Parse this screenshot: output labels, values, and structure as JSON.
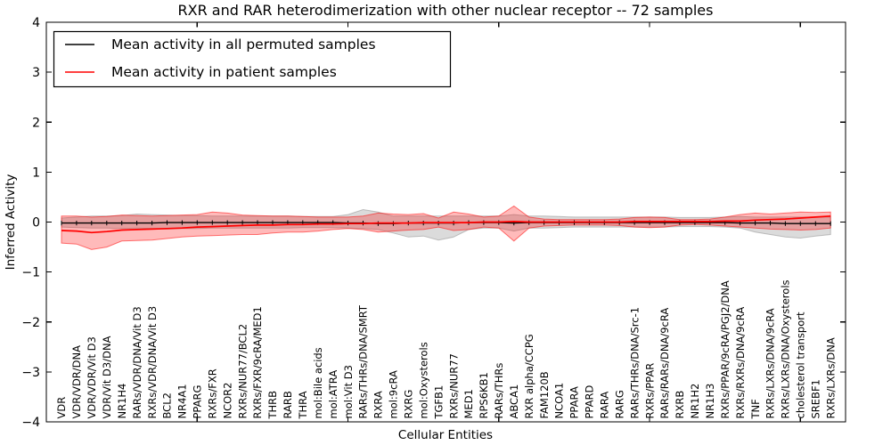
{
  "chart_data": {
    "type": "line",
    "title": "RXR and RAR heterodimerization with other nuclear receptor -- 72 samples",
    "xlabel": "Cellular Entities",
    "ylabel": "Inferred Activity",
    "ylim": [
      -4,
      4
    ],
    "ytick_values": [
      4,
      3,
      2,
      1,
      0,
      -1,
      -2,
      -3,
      -4
    ],
    "ytick_labels": [
      "4",
      "3",
      "2",
      "1",
      "0",
      "−1",
      "−2",
      "−3",
      "−4"
    ],
    "grid": false,
    "legend_position": "upper-left",
    "categories": [
      "VDR",
      "VDR/VDR/DNA",
      "VDR/VDR/Vit D3",
      "VDR/Vit D3/DNA",
      "NR1H4",
      "RARs/VDR/DNA/Vit D3",
      "RXRs/VDR/DNA/Vit D3",
      "BCL2",
      "NR4A1",
      "PPARG",
      "RXRs/FXR",
      "NCOR2",
      "RXRs/NUR77/BCL2",
      "RXRs/FXR/9cRA/MED1",
      "THRB",
      "RARB",
      "THRA",
      "mol:Bile acids",
      "mol:ATRA",
      "mol:Vit D3",
      "RARs/THRs/DNA/SMRT",
      "RXRA",
      "mol:9cRA",
      "RXRG",
      "mol:Oxysterols",
      "TGFB1",
      "RXRs/NUR77",
      "MED1",
      "RPS6KB1",
      "RARs/THRs",
      "ABCA1",
      "RXR alpha/CCPG",
      "FAM120B",
      "NCOA1",
      "PPARA",
      "PPARD",
      "RARA",
      "RARG",
      "RARs/THRs/DNA/Src-1",
      "RXRs/PPAR",
      "RARs/RARs/DNA/9cRA",
      "RXRB",
      "NR1H2",
      "NR1H3",
      "RXRs/PPAR/9cRA/PGJ2/DNA",
      "RXRs/RXRs/DNA/9cRA",
      "TNF",
      "RXRs/LXRs/DNA/9cRA",
      "RXRs/LXRs/DNA/Oxysterols",
      "cholesterol transport",
      "SREBF1",
      "RXRs/LXRs/DNA"
    ],
    "series": [
      {
        "name": "Mean activity in all permuted samples",
        "color": "#000000",
        "marker": "plus",
        "values": [
          -0.02,
          -0.02,
          -0.02,
          -0.02,
          -0.02,
          -0.02,
          -0.02,
          -0.01,
          -0.01,
          -0.01,
          -0.01,
          -0.01,
          -0.01,
          -0.01,
          -0.01,
          -0.01,
          -0.01,
          -0.01,
          -0.01,
          -0.02,
          -0.02,
          -0.03,
          -0.03,
          -0.02,
          -0.02,
          -0.02,
          -0.02,
          -0.01,
          -0.01,
          -0.01,
          -0.02,
          -0.01,
          -0.01,
          -0.01,
          -0.01,
          -0.01,
          -0.01,
          -0.01,
          -0.01,
          -0.01,
          -0.01,
          -0.01,
          -0.01,
          -0.01,
          -0.01,
          -0.02,
          -0.02,
          -0.02,
          -0.03,
          -0.03,
          -0.03,
          -0.03
        ]
      },
      {
        "name": "Mean activity in patient samples",
        "color": "#ff0000",
        "marker": "none",
        "values": [
          -0.17,
          -0.18,
          -0.21,
          -0.19,
          -0.16,
          -0.15,
          -0.14,
          -0.13,
          -0.12,
          -0.1,
          -0.09,
          -0.08,
          -0.07,
          -0.06,
          -0.06,
          -0.05,
          -0.05,
          -0.04,
          -0.04,
          -0.03,
          -0.03,
          -0.02,
          -0.02,
          -0.02,
          -0.01,
          -0.01,
          -0.01,
          -0.01,
          0,
          0,
          0.01,
          0,
          0,
          0,
          0,
          0,
          0,
          0,
          0.01,
          0.01,
          0.01,
          0.01,
          0.01,
          0.01,
          0.02,
          0.02,
          0.04,
          0.05,
          0.06,
          0.08,
          0.1,
          0.12
        ]
      }
    ],
    "bands": [
      {
        "name": "Permuted samples activity range",
        "color": "#999999",
        "fill_opacity": 0.35,
        "upper": [
          0.08,
          0.1,
          0.12,
          0.12,
          0.13,
          0.16,
          0.15,
          0.14,
          0.13,
          0.13,
          0.12,
          0.12,
          0.12,
          0.12,
          0.12,
          0.12,
          0.11,
          0.11,
          0.11,
          0.15,
          0.25,
          0.2,
          0.12,
          0.12,
          0.12,
          0.12,
          0.12,
          0.12,
          0.12,
          0.12,
          0.15,
          0.12,
          0.12,
          0.11,
          0.1,
          0.1,
          0.1,
          0.1,
          0.1,
          0.1,
          0.1,
          0.09,
          0.09,
          0.09,
          0.1,
          0.11,
          0.1,
          0.1,
          0.1,
          0.1,
          0.1,
          0.1
        ],
        "lower": [
          -0.1,
          -0.11,
          -0.12,
          -0.12,
          -0.13,
          -0.12,
          -0.13,
          -0.14,
          -0.13,
          -0.13,
          -0.12,
          -0.12,
          -0.12,
          -0.12,
          -0.12,
          -0.12,
          -0.11,
          -0.11,
          -0.11,
          -0.12,
          -0.13,
          -0.15,
          -0.22,
          -0.3,
          -0.28,
          -0.36,
          -0.3,
          -0.15,
          -0.12,
          -0.12,
          -0.18,
          -0.12,
          -0.12,
          -0.11,
          -0.1,
          -0.1,
          -0.1,
          -0.1,
          -0.1,
          -0.1,
          -0.1,
          -0.09,
          -0.09,
          -0.09,
          -0.1,
          -0.12,
          -0.2,
          -0.25,
          -0.3,
          -0.32,
          -0.28,
          -0.25
        ]
      },
      {
        "name": "Patient samples activity range",
        "color": "#ff0000",
        "fill_opacity": 0.27,
        "upper": [
          0.12,
          0.12,
          0.1,
          0.11,
          0.14,
          0.13,
          0.12,
          0.13,
          0.14,
          0.15,
          0.2,
          0.18,
          0.14,
          0.13,
          0.12,
          0.12,
          0.11,
          0.1,
          0.1,
          0.1,
          0.12,
          0.18,
          0.16,
          0.15,
          0.17,
          0.08,
          0.2,
          0.16,
          0.1,
          0.12,
          0.32,
          0.1,
          0.06,
          0.05,
          0.05,
          0.05,
          0.05,
          0.06,
          0.09,
          0.1,
          0.09,
          0.05,
          0.05,
          0.06,
          0.1,
          0.15,
          0.18,
          0.16,
          0.18,
          0.2,
          0.19,
          0.2
        ],
        "lower": [
          -0.42,
          -0.44,
          -0.55,
          -0.5,
          -0.38,
          -0.37,
          -0.36,
          -0.33,
          -0.3,
          -0.28,
          -0.27,
          -0.26,
          -0.25,
          -0.25,
          -0.22,
          -0.2,
          -0.2,
          -0.18,
          -0.15,
          -0.13,
          -0.15,
          -0.2,
          -0.18,
          -0.16,
          -0.15,
          -0.1,
          -0.17,
          -0.15,
          -0.1,
          -0.12,
          -0.38,
          -0.12,
          -0.08,
          -0.07,
          -0.06,
          -0.06,
          -0.06,
          -0.07,
          -0.1,
          -0.11,
          -0.1,
          -0.06,
          -0.05,
          -0.06,
          -0.08,
          -0.1,
          -0.12,
          -0.14,
          -0.15,
          -0.16,
          -0.15,
          -0.12
        ]
      }
    ]
  }
}
